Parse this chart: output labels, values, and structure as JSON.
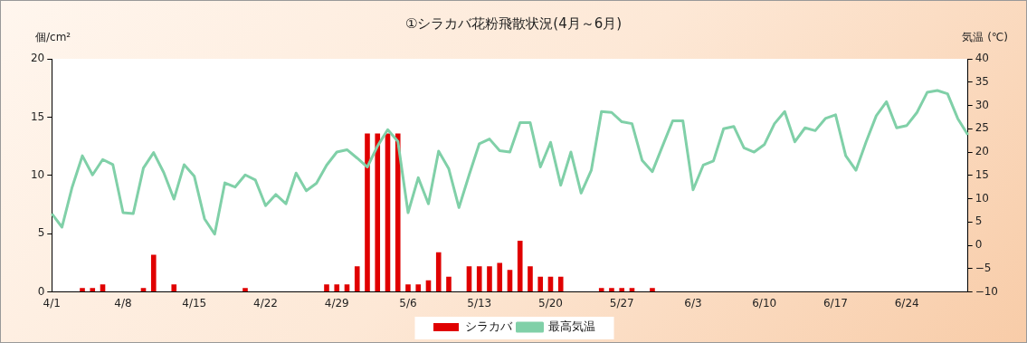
{
  "chart_data": {
    "type": "bar",
    "title": "①シラカバ花粉飛散状況(4月～6月)",
    "ylabel": "個/cm²",
    "y2label": "気温 (℃)",
    "categories": [
      "4/1",
      null,
      null,
      null,
      null,
      null,
      null,
      "4/8",
      null,
      null,
      null,
      null,
      null,
      null,
      "4/15",
      null,
      null,
      null,
      null,
      null,
      null,
      "4/22",
      null,
      null,
      null,
      null,
      null,
      null,
      "4/29",
      null,
      null,
      null,
      null,
      null,
      null,
      "5/6",
      null,
      null,
      null,
      null,
      null,
      null,
      "5/13",
      null,
      null,
      null,
      null,
      null,
      null,
      "5/20",
      null,
      null,
      null,
      null,
      null,
      null,
      "5/27",
      null,
      null,
      null,
      null,
      null,
      null,
      "6/3",
      null,
      null,
      null,
      null,
      null,
      null,
      "6/10",
      null,
      null,
      null,
      null,
      null,
      null,
      "6/17",
      null,
      null,
      null,
      null,
      null,
      null,
      "6/24",
      null,
      null,
      null,
      null,
      null,
      null
    ],
    "series": [
      {
        "name": "シラカバ",
        "color": "#e00000",
        "values": [
          0,
          0,
          0,
          0.33,
          0.33,
          0.65,
          0,
          0,
          0,
          0.33,
          3.2,
          0,
          0.65,
          0,
          0,
          0,
          0,
          0,
          0,
          0.33,
          0,
          0,
          0,
          0,
          0,
          0,
          0,
          0.65,
          0.65,
          0.65,
          2.2,
          13.6,
          13.6,
          13.6,
          13.6,
          0.65,
          0.65,
          1.0,
          3.4,
          1.3,
          0,
          2.2,
          2.2,
          2.2,
          2.5,
          1.9,
          4.4,
          2.2,
          1.3,
          1.3,
          1.3,
          0,
          0,
          0,
          0.33,
          0.33,
          0.33,
          0.33,
          0,
          0.33,
          0,
          0,
          0,
          0,
          0,
          0,
          0,
          0,
          0,
          0,
          0,
          0,
          0,
          0,
          0,
          0,
          0,
          0,
          0,
          0,
          0,
          0,
          0,
          0,
          0,
          0,
          0,
          0,
          0,
          0,
          0
        ]
      },
      {
        "name": "最高気温",
        "type": "line",
        "axis": "y2",
        "color": "#80d0a8",
        "values": [
          6.8,
          3.9,
          12.5,
          19.2,
          15.1,
          18.4,
          17.3,
          7.0,
          6.8,
          16.6,
          19.9,
          15.6,
          9.9,
          17.3,
          14.8,
          5.7,
          2.4,
          13.4,
          12.5,
          15.1,
          14.0,
          8.5,
          10.9,
          8.9,
          15.5,
          11.7,
          13.3,
          17.2,
          20.0,
          20.5,
          18.7,
          16.8,
          21.3,
          24.8,
          22.3,
          7.0,
          14.5,
          8.9,
          20.2,
          16.4,
          8.1,
          15.1,
          21.8,
          22.8,
          20.3,
          20.0,
          26.3,
          26.3,
          16.8,
          22.1,
          12.9,
          20.0,
          11.2,
          16.1,
          28.7,
          28.5,
          26.5,
          26.1,
          18.2,
          15.8,
          21.3,
          26.7,
          26.7,
          11.9,
          17.2,
          18.1,
          25.0,
          25.5,
          20.9,
          20.0,
          21.6,
          26.1,
          28.7,
          22.2,
          25.2,
          24.6,
          27.2,
          28.0,
          19.2,
          16.1,
          22.2,
          27.8,
          30.8,
          25.2,
          25.7,
          28.5,
          32.8,
          33.2,
          32.5,
          27.2,
          23.7
        ]
      }
    ],
    "ylim": [
      0,
      20
    ],
    "yticks": [
      0,
      5,
      10,
      15,
      20
    ],
    "y2lim": [
      -10,
      40
    ],
    "y2ticks": [
      -10,
      -5,
      0,
      5,
      10,
      15,
      20,
      25,
      30,
      35,
      40
    ],
    "grid": false,
    "legend": "bottom",
    "marker": "none"
  }
}
